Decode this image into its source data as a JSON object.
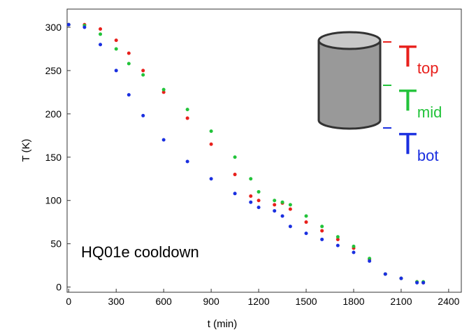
{
  "chart_data": {
    "type": "scatter",
    "annotation": "HQ01e cooldown",
    "x_label": "t (min)",
    "y_label": "T (K)",
    "xlim": [
      -10,
      2480
    ],
    "ylim": [
      -6,
      321
    ],
    "xticks": [
      0,
      300,
      600,
      900,
      1200,
      1500,
      1800,
      2100,
      2400
    ],
    "yticks": [
      0,
      50,
      100,
      150,
      200,
      250,
      300
    ],
    "x": [
      0,
      100,
      200,
      300,
      380,
      420,
      470,
      600,
      750,
      900,
      1050,
      1150,
      1200,
      1300,
      1350,
      1400,
      1500,
      1600,
      1700,
      1800,
      1900,
      2000,
      2100,
      2200,
      2240
    ],
    "series": [
      {
        "symbol": "T",
        "subscript": "top",
        "color": "#e8201c",
        "values": [
          303,
          303,
          298,
          285,
          270,
          null,
          250,
          225,
          195,
          165,
          130,
          105,
          100,
          95,
          97,
          90,
          75,
          65,
          55,
          45,
          32,
          15,
          10,
          6,
          5
        ]
      },
      {
        "symbol": "T",
        "subscript": "mid",
        "color": "#22c33a",
        "values": [
          303,
          302,
          292,
          275,
          258,
          null,
          245,
          228,
          205,
          180,
          150,
          125,
          110,
          100,
          98,
          95,
          82,
          70,
          58,
          47,
          33,
          15,
          10,
          6,
          6
        ]
      },
      {
        "symbol": "T",
        "subscript": "bot",
        "color": "#1a2fe0",
        "values": [
          303,
          300,
          280,
          250,
          222,
          null,
          198,
          170,
          145,
          125,
          108,
          98,
          92,
          88,
          82,
          70,
          62,
          55,
          48,
          40,
          30,
          15,
          10,
          5,
          5
        ]
      }
    ]
  }
}
